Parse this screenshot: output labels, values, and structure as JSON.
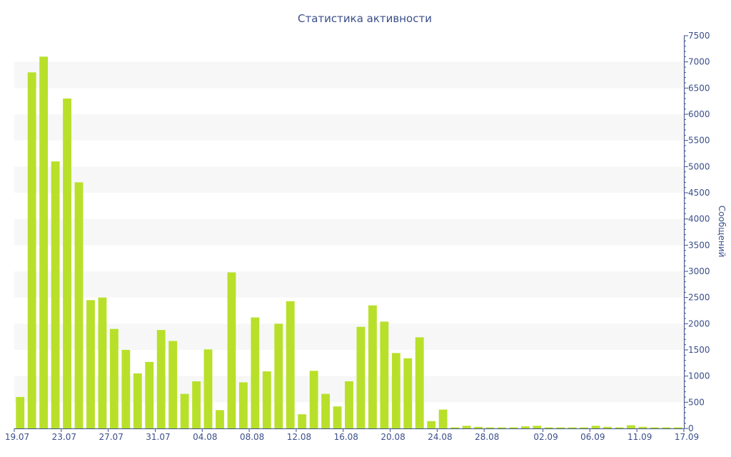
{
  "chart_data": {
    "type": "bar",
    "title": "Статистика активности",
    "xlabel": "",
    "ylabel": "Сообщений",
    "ylim": [
      0,
      7500
    ],
    "y_axis_position": "right",
    "grid": "alternating horizontal bands",
    "legend": "none",
    "colors": {
      "bar": "#b8e02a",
      "text": "#3b4f8a",
      "band": "#f7f7f7",
      "axis": "#3b4f8a"
    },
    "y_ticks": [
      "0",
      "500",
      "1000",
      "1500",
      "2000",
      "2500",
      "3000",
      "3500",
      "4000",
      "4500",
      "5000",
      "5500",
      "6000",
      "6500",
      "7000",
      "7500"
    ],
    "x_tick_labels": [
      {
        "index": 0,
        "label": "19.07"
      },
      {
        "index": 4,
        "label": "23.07"
      },
      {
        "index": 8,
        "label": "27.07"
      },
      {
        "index": 12,
        "label": "31.07"
      },
      {
        "index": 16,
        "label": "04.08"
      },
      {
        "index": 20,
        "label": "08.08"
      },
      {
        "index": 24,
        "label": "12.08"
      },
      {
        "index": 28,
        "label": "16.08"
      },
      {
        "index": 32,
        "label": "20.08"
      },
      {
        "index": 36,
        "label": "24.08"
      },
      {
        "index": 40,
        "label": "28.08"
      },
      {
        "index": 45,
        "label": "02.09"
      },
      {
        "index": 49,
        "label": "06.09"
      },
      {
        "index": 53,
        "label": "11.09"
      },
      {
        "index": 57,
        "label": "17.09"
      }
    ],
    "values": [
      600,
      6800,
      7100,
      5100,
      6300,
      4700,
      2450,
      2500,
      1900,
      1500,
      1050,
      1270,
      1880,
      1670,
      660,
      900,
      1510,
      350,
      2980,
      880,
      2120,
      1090,
      2000,
      2430,
      270,
      1100,
      660,
      420,
      900,
      1940,
      2350,
      2040,
      1440,
      1340,
      1740,
      140,
      360,
      20,
      50,
      30,
      20,
      20,
      20,
      40,
      50,
      20,
      20,
      20,
      20,
      50,
      30,
      20,
      60,
      30,
      20,
      20,
      20
    ]
  }
}
